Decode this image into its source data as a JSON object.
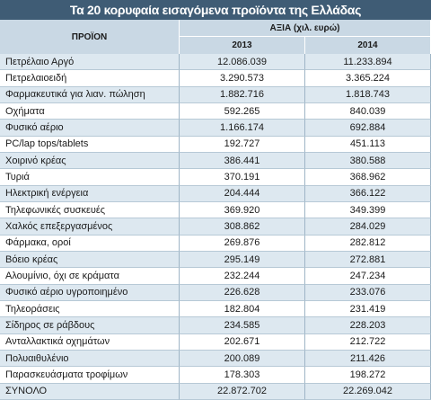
{
  "header": {
    "title": "Τα 20 κορυφαία εισαγόμενα προϊόντα της Ελλάδας"
  },
  "table": {
    "product_header": "ΠΡΟΪΟΝ",
    "value_header": "ΑΞΙΑ (χιλ. ευρώ)",
    "years": [
      "2013",
      "2014"
    ],
    "rows": [
      [
        "Πετρέλαιο Αργό",
        "12.086.039",
        "11.233.894"
      ],
      [
        "Πετρελαιοειδή",
        "3.290.573",
        "3.365.224"
      ],
      [
        "Φαρμακευτικά για λιαν. πώληση",
        "1.882.716",
        "1.818.743"
      ],
      [
        "Οχήματα",
        "592.265",
        "840.039"
      ],
      [
        "Φυσικό αέριο",
        "1.166.174",
        "692.884"
      ],
      [
        "PC/lap tops/tablets",
        "192.727",
        "451.113"
      ],
      [
        "Χοιρινό κρέας",
        "386.441",
        "380.588"
      ],
      [
        "Τυριά",
        "370.191",
        "368.962"
      ],
      [
        "Ηλεκτρική ενέργεια",
        "204.444",
        "366.122"
      ],
      [
        "Τηλεφωνικές συσκευές",
        "369.920",
        "349.399"
      ],
      [
        "Χαλκός επεξεργασμένος",
        "308.862",
        "284.029"
      ],
      [
        "Φάρμακα, οροί",
        "269.876",
        "282.812"
      ],
      [
        "Βόειο κρέας",
        "295.149",
        "272.881"
      ],
      [
        "Αλουμίνιο, όχι σε κράματα",
        "232.244",
        "247.234"
      ],
      [
        "Φυσικό αέριο υγροποιημένο",
        "226.628",
        "233.076"
      ],
      [
        "Τηλεοράσεις",
        "182.804",
        "231.419"
      ],
      [
        "Σίδηρος σε ράβδους",
        "234.585",
        "228.203"
      ],
      [
        "Ανταλλακτικά οχημάτων",
        "202.671",
        "212.722"
      ],
      [
        "Πολυαιθυλένιο",
        "200.089",
        "211.426"
      ],
      [
        "Παρασκευάσματα τροφίμων",
        "178.303",
        "198.272"
      ],
      [
        "ΣΥΝΟΛΟ",
        "22.872.702",
        "22.269.042"
      ]
    ]
  }
}
